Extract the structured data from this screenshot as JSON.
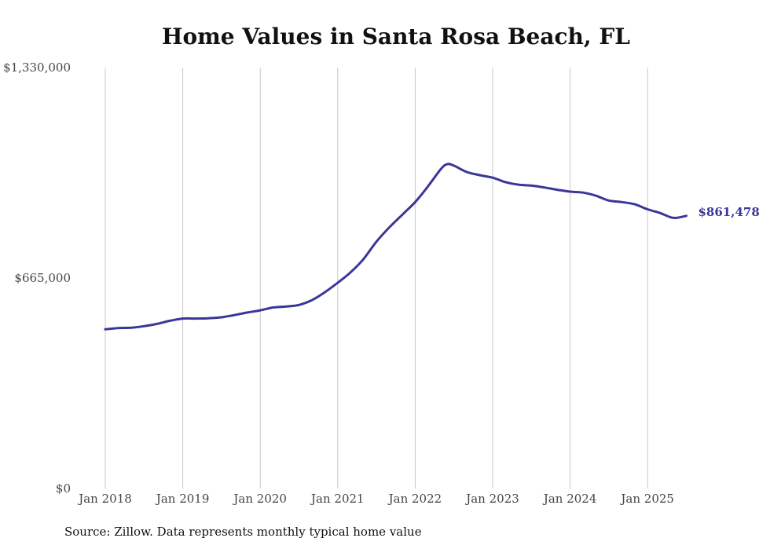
{
  "chart_data": {
    "type": "line",
    "title": "Home Values in Santa Rosa Beach, FL",
    "source": "Source: Zillow. Data represents monthly typical home value",
    "xlabel": "",
    "ylabel": "",
    "x_ticks": [
      "Jan 2018",
      "Jan 2019",
      "Jan 2020",
      "Jan 2021",
      "Jan 2022",
      "Jan 2023",
      "Jan 2024",
      "Jan 2025"
    ],
    "y_ticks": [
      "$0",
      "$665,000",
      "$1,330,000"
    ],
    "ylim": [
      0,
      1330000
    ],
    "grid": "vertical",
    "line_color": "#3a3699",
    "end_label": "$861,478",
    "series": [
      {
        "x": [
          "2018-01",
          "2018-03",
          "2018-05",
          "2018-07",
          "2018-09",
          "2018-11",
          "2019-01",
          "2019-03",
          "2019-05",
          "2019-07",
          "2019-09",
          "2019-11",
          "2020-01",
          "2020-03",
          "2020-05",
          "2020-07",
          "2020-09",
          "2020-11",
          "2021-01",
          "2021-03",
          "2021-05",
          "2021-07",
          "2021-09",
          "2021-11",
          "2022-01",
          "2022-03",
          "2022-05",
          "2022-06",
          "2022-07",
          "2022-09",
          "2022-11",
          "2023-01",
          "2023-03",
          "2023-05",
          "2023-07",
          "2023-09",
          "2023-11",
          "2024-01",
          "2024-03",
          "2024-05",
          "2024-07",
          "2024-09",
          "2024-11",
          "2025-01",
          "2025-03",
          "2025-05",
          "2025-07"
        ],
        "values": [
          503000,
          507000,
          508000,
          513000,
          520000,
          530000,
          537000,
          537000,
          538000,
          541000,
          548000,
          556000,
          563000,
          572000,
          575000,
          580000,
          595000,
          620000,
          650000,
          683000,
          725000,
          780000,
          825000,
          865000,
          905000,
          955000,
          1010000,
          1025000,
          1020000,
          1000000,
          990000,
          982000,
          968000,
          960000,
          957000,
          951000,
          944000,
          938000,
          935000,
          925000,
          910000,
          905000,
          898000,
          882000,
          870000,
          855000,
          861478
        ]
      }
    ]
  }
}
